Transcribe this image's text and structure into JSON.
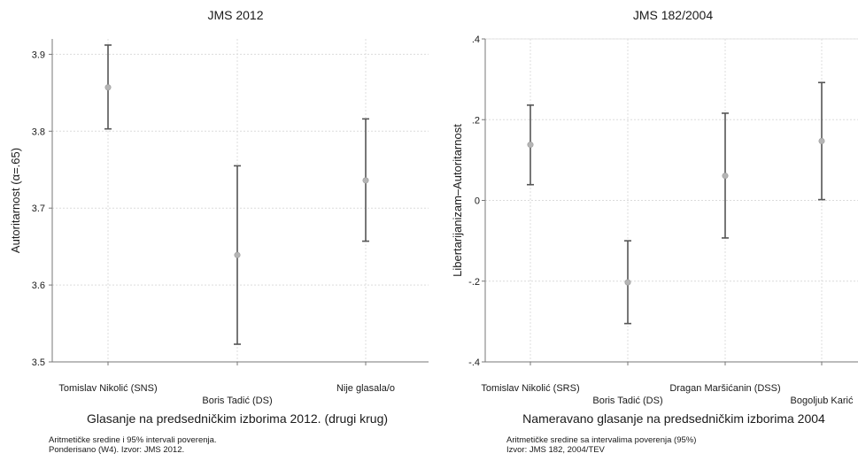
{
  "chart_data": [
    {
      "type": "errorbar",
      "title": "JMS 2012",
      "xlabel": "Glasanje na predsedničkim izborima 2012. (drugi krug)",
      "ylabel": "Autoritarnost (α=.65)",
      "ylim": [
        3.5,
        3.92
      ],
      "yticks": [
        3.5,
        3.6,
        3.7,
        3.8,
        3.9
      ],
      "ytick_labels": [
        "3.5",
        "3.6",
        "3.7",
        "3.8",
        "3.9"
      ],
      "categories": [
        "Tomislav Nikolić (SNS)",
        "Boris Tadić (DS)",
        "Nije glasala/o"
      ],
      "means": [
        3.857,
        3.639,
        3.736
      ],
      "lower": [
        3.803,
        3.523,
        3.657
      ],
      "upper": [
        3.912,
        3.755,
        3.816
      ],
      "grid": true,
      "note_lines": [
        "Aritmetičke sredine i 95% intervali poverenja.",
        "Ponderisano (W4). Izvor: JMS 2012."
      ]
    },
    {
      "type": "errorbar",
      "title": "JMS 182/2004",
      "xlabel": "Nameravano glasanje na predsedničkim izborima 2004",
      "ylabel": "Libertarijanizam–Autoritarnost",
      "ylim": [
        -0.4,
        0.4
      ],
      "yticks": [
        -0.4,
        -0.2,
        0,
        0.2,
        0.4
      ],
      "ytick_labels": [
        "-.4",
        "-.2",
        "0",
        ".2",
        ".4"
      ],
      "categories": [
        "Tomislav Nikolić (SRS)",
        "Boris Tadić (DS)",
        "Dragan Maršićanin (DSS)",
        "Bogoljub Karić"
      ],
      "means": [
        0.138,
        -0.203,
        0.061,
        0.147
      ],
      "lower": [
        0.039,
        -0.305,
        -0.093,
        0.002
      ],
      "upper": [
        0.236,
        -0.1,
        0.216,
        0.292
      ],
      "grid": true,
      "note_lines": [
        "Aritmetičke sredine sa intervalima poverenja (95%)",
        "Izvor: JMS 182, 2004/TEV"
      ]
    }
  ],
  "colors": {
    "marker": "#b5b5b5",
    "errorbar": "#555555",
    "grid": "#dcdcdc",
    "axis": "#777777",
    "text": "#1a1a1a"
  }
}
